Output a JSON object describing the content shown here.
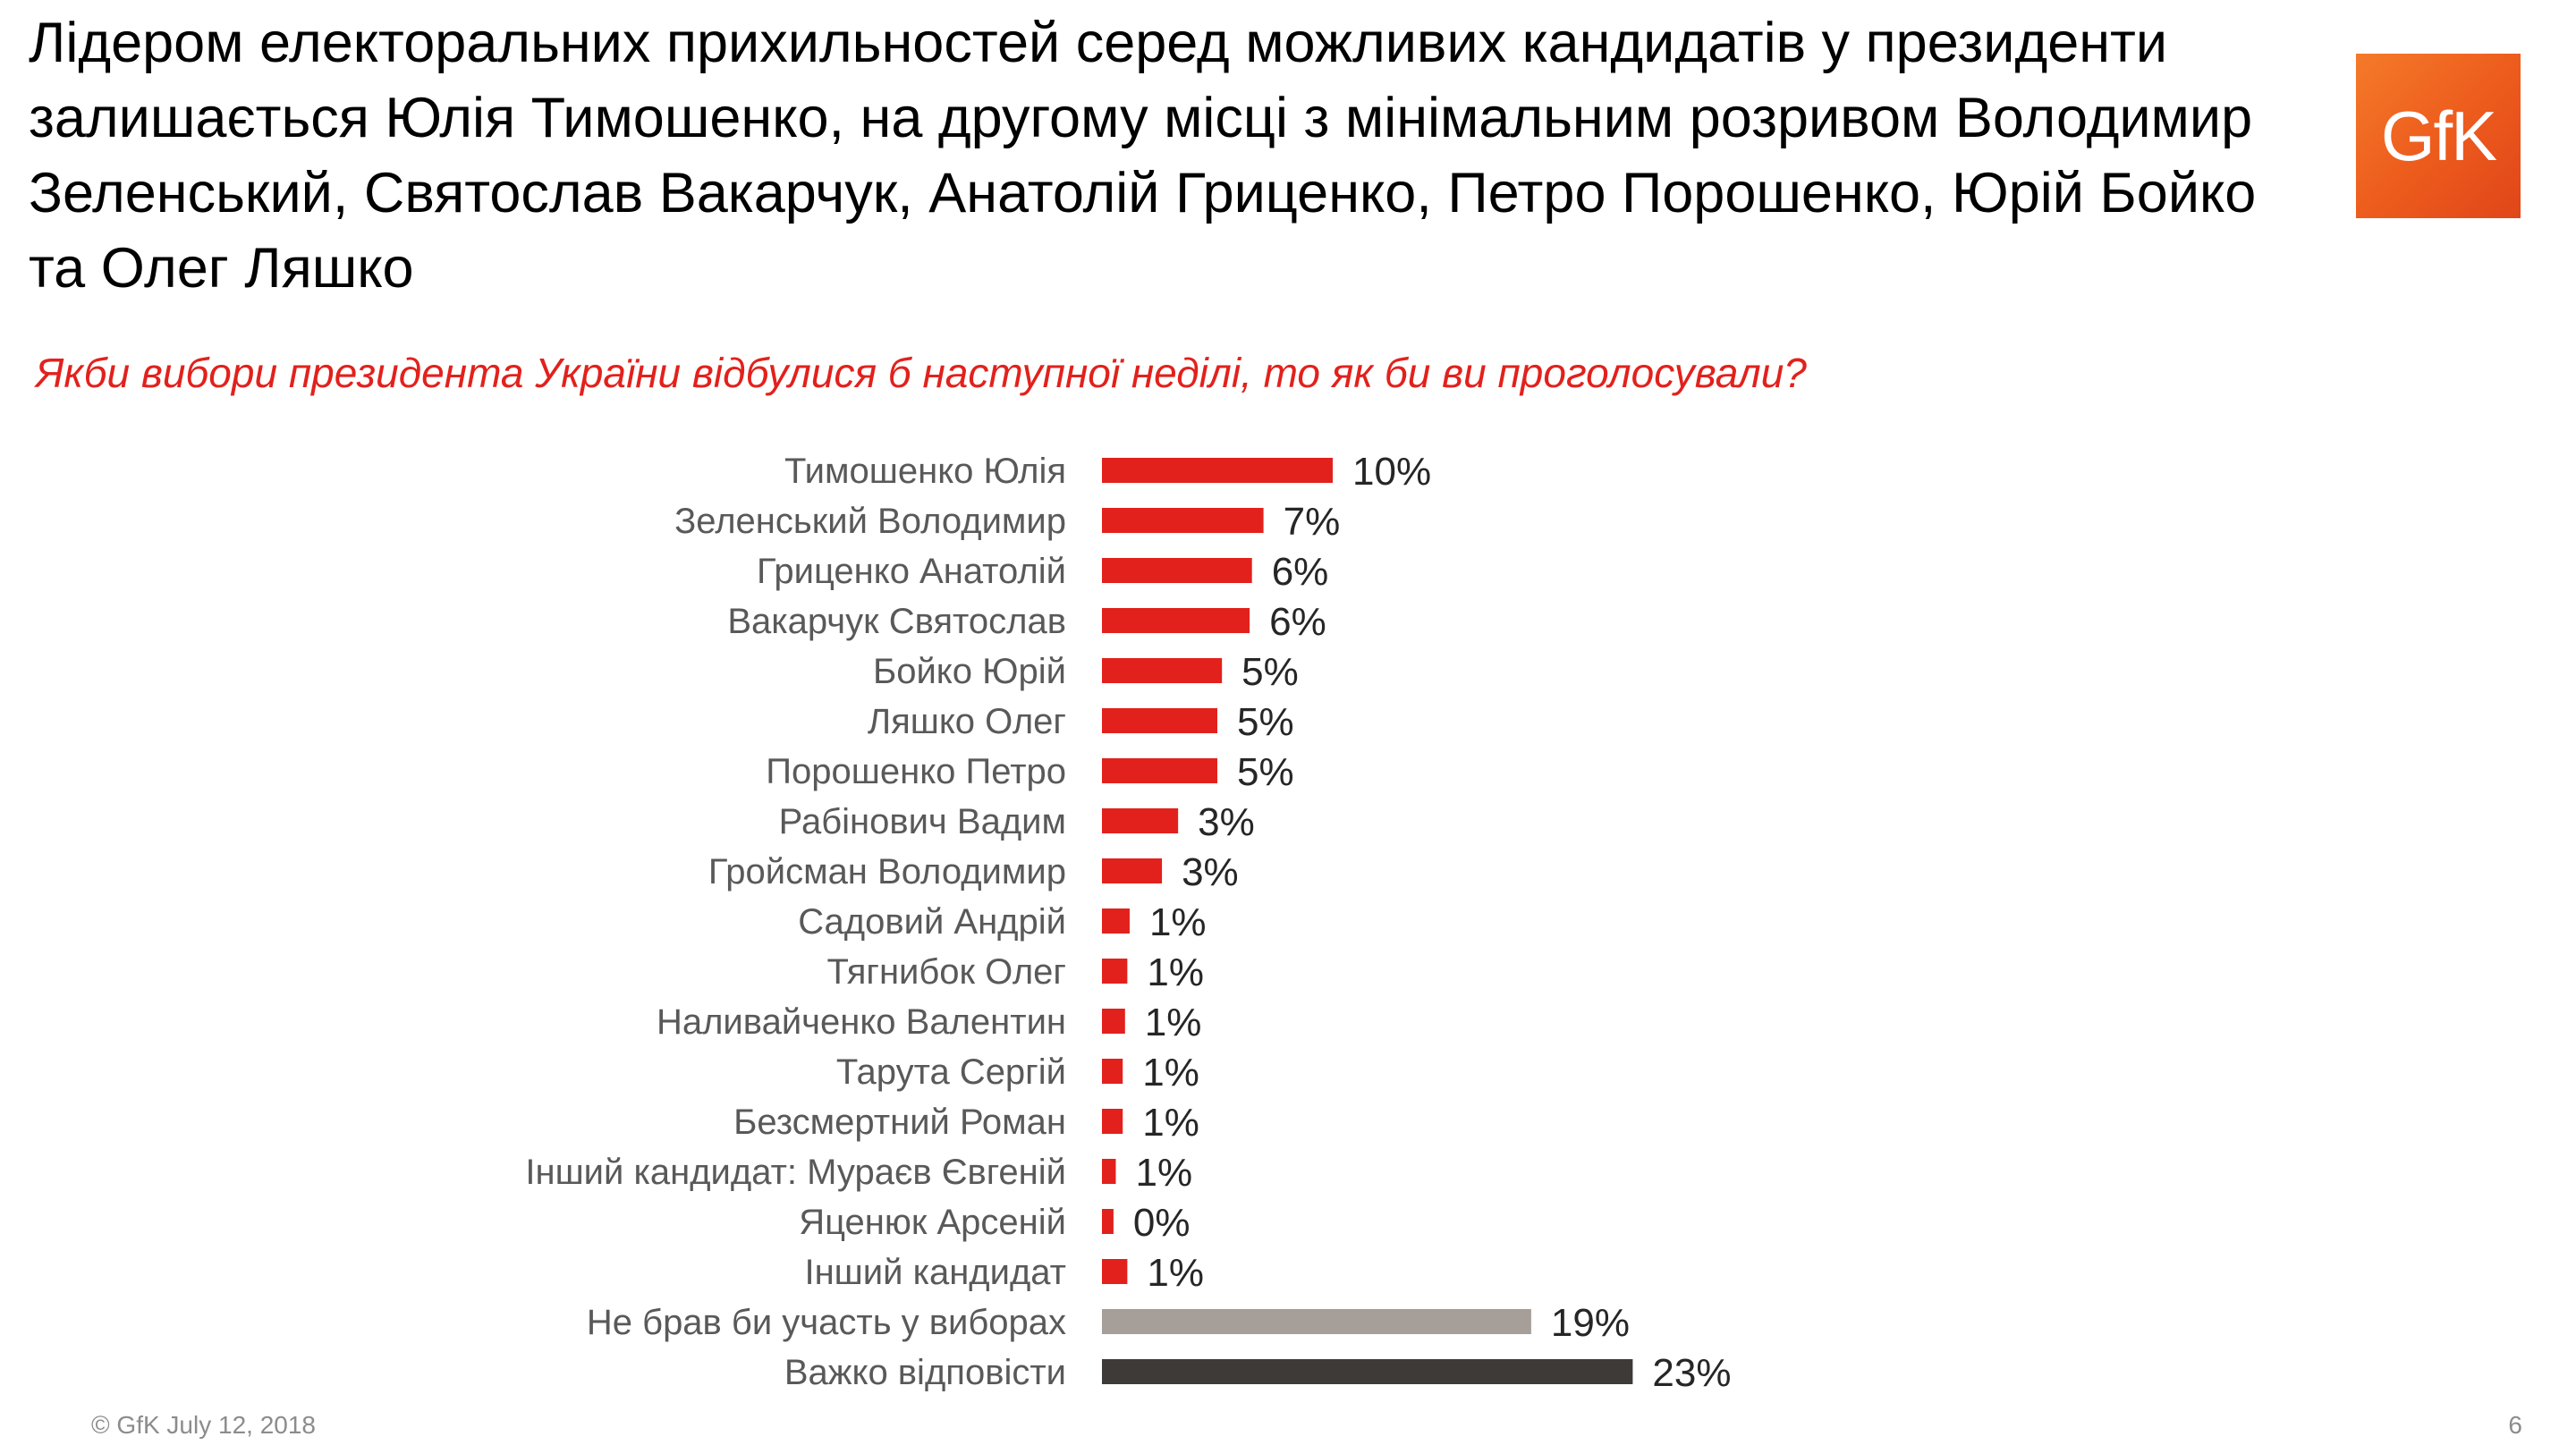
{
  "slide": {
    "title": "Лідером електоральних прихильностей серед можливих кандидатів у президенти залишається Юлія Тимошенко, на другому місці з мінімальним розривом Володимир Зеленський, Святослав Вакарчук, Анатолій Гриценко, Петро Порошенко, Юрій Бойко та Олег Ляшко",
    "question": "Якби вибори президента України відбулися б наступної неділі, то як би ви проголосували?",
    "logo_text": "GfK",
    "footer_left": "© GfK July 12, 2018",
    "page_number": "6"
  },
  "colors": {
    "candidate": "#e2211c",
    "abstain": "#a59e99",
    "undecided": "#3d3a38",
    "logo": "#f26a21"
  },
  "chart_data": {
    "type": "bar",
    "orientation": "horizontal",
    "title": "",
    "xlabel": "",
    "ylabel": "",
    "xlim": [
      0,
      23
    ],
    "grid": false,
    "legend": "none",
    "bars": [
      {
        "category": "Тимошенко Юлія",
        "value": 10,
        "label": "10%",
        "group": "candidate"
      },
      {
        "category": "Зеленський Володимир",
        "value": 7,
        "label": "7%",
        "group": "candidate"
      },
      {
        "category": "Гриценко Анатолій",
        "value": 6.5,
        "label": "6%",
        "group": "candidate"
      },
      {
        "category": "Вакарчук Святослав",
        "value": 6.4,
        "label": "6%",
        "group": "candidate"
      },
      {
        "category": "Бойко Юрій",
        "value": 5.2,
        "label": "5%",
        "group": "candidate"
      },
      {
        "category": "Ляшко Олег",
        "value": 5,
        "label": "5%",
        "group": "candidate"
      },
      {
        "category": "Порошенко Петро",
        "value": 5,
        "label": "5%",
        "group": "candidate"
      },
      {
        "category": "Рабінович Вадим",
        "value": 3.3,
        "label": "3%",
        "group": "candidate"
      },
      {
        "category": "Гройсман Володимир",
        "value": 2.6,
        "label": "3%",
        "group": "candidate"
      },
      {
        "category": "Садовий Андрій",
        "value": 1.2,
        "label": "1%",
        "group": "candidate"
      },
      {
        "category": "Тягнибок Олег",
        "value": 1.1,
        "label": "1%",
        "group": "candidate"
      },
      {
        "category": "Наливайченко Валентин",
        "value": 1,
        "label": "1%",
        "group": "candidate"
      },
      {
        "category": "Тарута Сергій",
        "value": 0.9,
        "label": "1%",
        "group": "candidate"
      },
      {
        "category": "Безсмертний Роман",
        "value": 0.9,
        "label": "1%",
        "group": "candidate"
      },
      {
        "category": "Інший кандидат: Мураєв Євгеній",
        "value": 0.6,
        "label": "1%",
        "group": "candidate"
      },
      {
        "category": "Яценюк Арсеній",
        "value": 0.5,
        "label": "0%",
        "group": "candidate"
      },
      {
        "category": "Інший кандидат",
        "value": 1.1,
        "label": "1%",
        "group": "candidate"
      },
      {
        "category": "Не брав би участь у виборах",
        "value": 18.6,
        "label": "19%",
        "group": "abstain"
      },
      {
        "category": "Важко відповісти",
        "value": 23,
        "label": "23%",
        "group": "undecided"
      }
    ]
  }
}
